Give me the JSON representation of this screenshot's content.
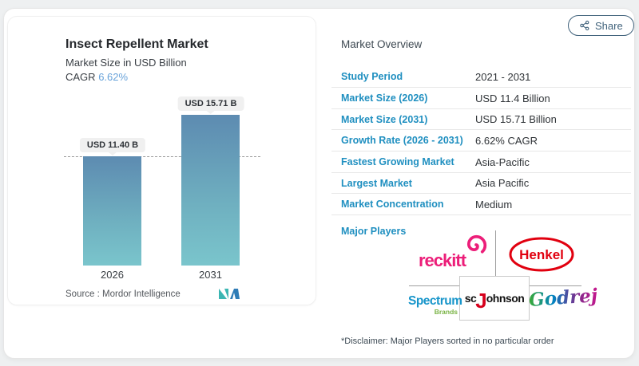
{
  "share": {
    "label": "Share"
  },
  "chart": {
    "title": "Insect Repellent Market",
    "subtitle": "Market Size in USD Billion",
    "cagr_label": "CAGR",
    "cagr_value": "6.62%",
    "source_line": "Source :  Mordor Intelligence",
    "logo": "mordor-intelligence-logo"
  },
  "chart_data": {
    "type": "bar",
    "title": "Insect Repellent Market",
    "ylabel": "Market Size in USD Billion",
    "cagr": "6.62%",
    "categories": [
      "2026",
      "2031"
    ],
    "values": [
      11.4,
      15.71
    ],
    "bar_labels": [
      "USD 11.40 B",
      "USD 15.71 B"
    ],
    "ylim": [
      0,
      18.5
    ],
    "reference_line": {
      "y": 11.4,
      "style": "dashed"
    },
    "bar_gradient": [
      "#5d8bb1",
      "#7ac5cc"
    ],
    "source": "Mordor Intelligence"
  },
  "overview": {
    "heading": "Market Overview",
    "rows": [
      {
        "label": "Study Period",
        "value": "2021 - 2031"
      },
      {
        "label": "Market Size (2026)",
        "value": "USD 11.4 Billion"
      },
      {
        "label": "Market Size (2031)",
        "value": "USD 15.71 Billion"
      },
      {
        "label": "Growth Rate (2026 - 2031)",
        "value": "6.62% CAGR"
      },
      {
        "label": "Fastest Growing Market",
        "value": "Asia-Pacific"
      },
      {
        "label": "Largest Market",
        "value": "Asia Pacific"
      },
      {
        "label": "Market Concentration",
        "value": "Medium"
      }
    ],
    "major_players_label": "Major Players",
    "players": {
      "reckitt": {
        "label": "reckitt"
      },
      "henkel": {
        "label": "Henkel"
      },
      "spectrum": {
        "label": "Spectrum",
        "sublabel": "Brands"
      },
      "scjohnson": {
        "prefix": "sc",
        "j": "J",
        "suffix": "ohnson"
      },
      "godrej": {
        "label": "Godrej"
      }
    },
    "disclaimer": "*Disclaimer: Major Players sorted in no particular order"
  },
  "colors": {
    "accent_blue": "#1f8fc0",
    "cagr_blue": "#69a3da",
    "bar_top": "#5d8bb1",
    "bar_bottom": "#7ac5cc",
    "share": "#40627b",
    "reckitt_pink": "#ec1e79",
    "henkel_red": "#e1000f",
    "scjohnson_red": "#d6001c",
    "spectrum_blue": "#1795ca",
    "spectrum_green": "#79b344",
    "godrej_gradient": [
      "#3aaa35",
      "#0083c1",
      "#7d2e8d",
      "#c6168d"
    ]
  }
}
